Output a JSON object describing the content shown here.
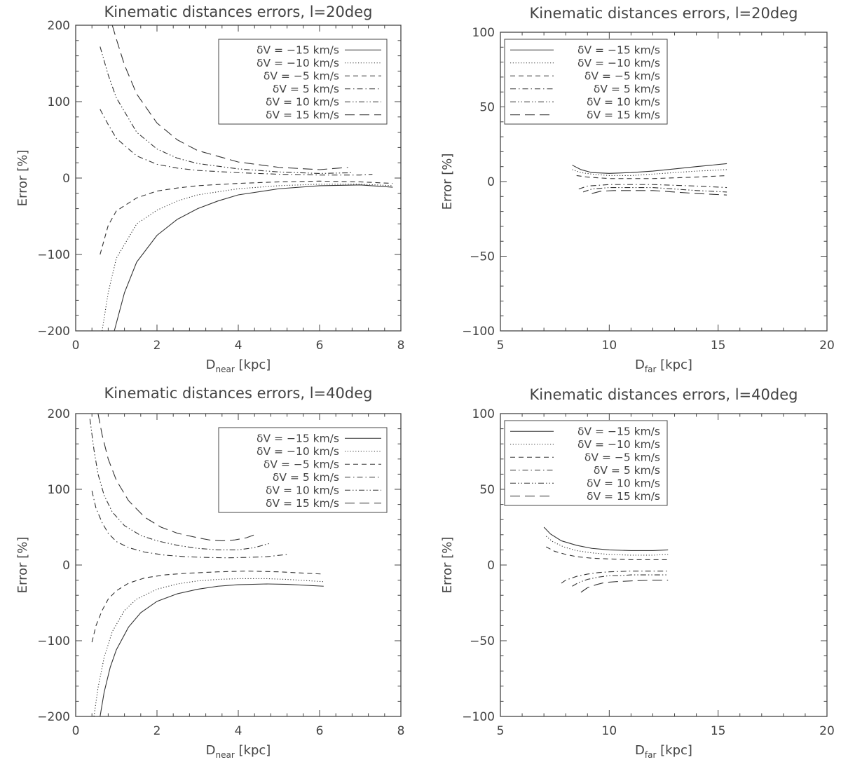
{
  "chart_data": [
    {
      "type": "line",
      "title": "Kinematic distances errors, l=20deg",
      "xlabel_main": "D",
      "xlabel_sub": "near",
      "xlabel_unit": " [kpc]",
      "ylabel": "Error [%]",
      "xlim": [
        0,
        8
      ],
      "ylim": [
        -200,
        200
      ],
      "xticks": [
        0,
        2,
        4,
        6,
        8
      ],
      "yticks": [
        -200,
        -100,
        0,
        100,
        200
      ],
      "legend_position": "top-right",
      "legend_align": "right",
      "series": [
        {
          "name": "δV = −15 km/s",
          "dash": "solid",
          "x": [
            0.95,
            1.2,
            1.5,
            2.0,
            2.5,
            3.0,
            3.5,
            4.0,
            5.0,
            6.0,
            7.0,
            7.8
          ],
          "y": [
            -200,
            -150,
            -110,
            -75,
            -54,
            -40,
            -30,
            -22,
            -14,
            -10,
            -9,
            -12
          ]
        },
        {
          "name": "δV = −10 km/s",
          "dash": "dotted",
          "x": [
            0.65,
            0.8,
            1.0,
            1.5,
            2.0,
            2.5,
            3.0,
            4.0,
            5.0,
            6.0,
            7.0,
            7.8
          ],
          "y": [
            -200,
            -150,
            -105,
            -60,
            -42,
            -30,
            -22,
            -14,
            -10,
            -8,
            -8,
            -10
          ]
        },
        {
          "name": "δV = −5 km/s",
          "dash": "dashed",
          "x": [
            0.6,
            0.8,
            1.0,
            1.5,
            2.0,
            2.5,
            3.0,
            4.0,
            5.0,
            6.0,
            7.0,
            7.8
          ],
          "y": [
            -100,
            -62,
            -43,
            -26,
            -17,
            -13,
            -10,
            -7,
            -5,
            -4,
            -5,
            -7
          ]
        },
        {
          "name": "δV = 5 km/s",
          "dash": "dashdot",
          "x": [
            0.6,
            0.8,
            1.0,
            1.5,
            2.0,
            2.5,
            3.0,
            4.0,
            5.0,
            6.0,
            7.0,
            7.3
          ],
          "y": [
            90,
            70,
            52,
            29,
            18,
            13,
            10,
            7,
            5,
            4,
            4,
            5
          ]
        },
        {
          "name": "δV = 10 km/s",
          "dash": "dashdotdot",
          "x": [
            0.6,
            0.8,
            1.0,
            1.5,
            2.0,
            2.5,
            3.0,
            4.0,
            5.0,
            6.0,
            6.8
          ],
          "y": [
            172,
            135,
            105,
            60,
            38,
            26,
            19,
            12,
            8,
            6,
            7
          ]
        },
        {
          "name": "δV = 15 km/s",
          "dash": "longdash",
          "x": [
            0.9,
            1.0,
            1.2,
            1.5,
            2.0,
            2.5,
            3.0,
            4.0,
            5.0,
            6.0,
            6.7
          ],
          "y": [
            200,
            182,
            148,
            110,
            72,
            50,
            36,
            21,
            14,
            11,
            14
          ]
        }
      ]
    },
    {
      "type": "line",
      "title": "Kinematic distances errors, l=20deg",
      "xlabel_main": "D",
      "xlabel_sub": "far",
      "xlabel_unit": " [kpc]",
      "ylabel": "Error [%]",
      "xlim": [
        5,
        20
      ],
      "ylim": [
        -100,
        100
      ],
      "xticks": [
        5,
        10,
        15,
        20
      ],
      "yticks": [
        -100,
        -50,
        0,
        50,
        100
      ],
      "legend_position": "top-left",
      "legend_align": "left",
      "series": [
        {
          "name": "δV = −15 km/s",
          "dash": "solid",
          "x": [
            8.3,
            8.7,
            9.2,
            10.0,
            11.0,
            12.0,
            13.0,
            14.0,
            15.4
          ],
          "y": [
            11,
            8,
            6,
            5.5,
            6,
            7,
            8.5,
            10,
            12
          ]
        },
        {
          "name": "δV = −10 km/s",
          "dash": "dotted",
          "x": [
            8.3,
            8.7,
            9.2,
            10.0,
            11.0,
            12.0,
            13.0,
            14.0,
            15.4
          ],
          "y": [
            8,
            6,
            5,
            4,
            4,
            5,
            6,
            7,
            8
          ]
        },
        {
          "name": "δV = −5 km/s",
          "dash": "dashed",
          "x": [
            8.5,
            9.0,
            10.0,
            11.0,
            12.0,
            13.0,
            14.0,
            15.4
          ],
          "y": [
            4,
            3,
            2,
            2,
            2,
            2.5,
            3,
            4
          ]
        },
        {
          "name": "δV = 5 km/s",
          "dash": "dashdot",
          "x": [
            8.6,
            9.0,
            10.0,
            11.0,
            12.0,
            13.0,
            14.0,
            15.4
          ],
          "y": [
            -5,
            -3,
            -2,
            -2,
            -2,
            -2.5,
            -3,
            -4
          ]
        },
        {
          "name": "δV = 10 km/s",
          "dash": "dashdotdot",
          "x": [
            8.8,
            9.2,
            10.0,
            11.0,
            12.0,
            13.0,
            14.0,
            15.4
          ],
          "y": [
            -7,
            -5,
            -4,
            -4,
            -4,
            -5,
            -6,
            -7
          ]
        },
        {
          "name": "δV = 15 km/s",
          "dash": "longdash",
          "x": [
            9.2,
            9.6,
            10.2,
            11.0,
            12.0,
            13.0,
            14.0,
            15.4
          ],
          "y": [
            -8,
            -6.5,
            -6,
            -6,
            -6,
            -7,
            -8,
            -9
          ]
        }
      ]
    },
    {
      "type": "line",
      "title": "Kinematic distances errors, l=40deg",
      "xlabel_main": "D",
      "xlabel_sub": "near",
      "xlabel_unit": " [kpc]",
      "ylabel": "Error [%]",
      "xlim": [
        0,
        8
      ],
      "ylim": [
        -200,
        200
      ],
      "xticks": [
        0,
        2,
        4,
        6,
        8
      ],
      "yticks": [
        -200,
        -100,
        0,
        100,
        200
      ],
      "legend_position": "top-right",
      "legend_align": "right",
      "series": [
        {
          "name": "δV = −15 km/s",
          "dash": "solid",
          "x": [
            0.6,
            0.7,
            0.85,
            1.0,
            1.3,
            1.6,
            2.0,
            2.5,
            3.0,
            3.5,
            4.0,
            4.7,
            5.2,
            6.1
          ],
          "y": [
            -200,
            -168,
            -135,
            -112,
            -82,
            -63,
            -48,
            -38,
            -32,
            -28,
            -26,
            -25,
            -25.5,
            -28
          ]
        },
        {
          "name": "δV = −10 km/s",
          "dash": "dotted",
          "x": [
            0.45,
            0.55,
            0.7,
            0.9,
            1.2,
            1.5,
            2.0,
            2.5,
            3.0,
            3.5,
            4.0,
            4.7,
            5.2,
            6.1
          ],
          "y": [
            -200,
            -162,
            -122,
            -88,
            -60,
            -45,
            -32,
            -25,
            -21,
            -19,
            -18,
            -18,
            -19,
            -22
          ]
        },
        {
          "name": "δV = −5 km/s",
          "dash": "dashed",
          "x": [
            0.4,
            0.5,
            0.65,
            0.8,
            1.0,
            1.3,
            1.7,
            2.2,
            2.7,
            3.5,
            4.2,
            5.0,
            6.1
          ],
          "y": [
            -102,
            -80,
            -60,
            -45,
            -34,
            -24,
            -17,
            -13,
            -11,
            -9,
            -8,
            -9,
            -12
          ]
        },
        {
          "name": "δV = 5 km/s",
          "dash": "dashdot",
          "x": [
            0.4,
            0.5,
            0.65,
            0.8,
            1.0,
            1.3,
            1.7,
            2.2,
            2.7,
            3.2,
            3.7,
            4.2,
            4.7,
            5.2
          ],
          "y": [
            98,
            75,
            56,
            42,
            31,
            23,
            17,
            13,
            11,
            10,
            9.5,
            10,
            11,
            14
          ]
        },
        {
          "name": "δV = 10 km/s",
          "dash": "dashdotdot",
          "x": [
            0.35,
            0.45,
            0.55,
            0.7,
            0.9,
            1.2,
            1.6,
            2.0,
            2.5,
            3.0,
            3.5,
            4.0,
            4.4,
            4.8
          ],
          "y": [
            193,
            152,
            120,
            92,
            70,
            52,
            39,
            32,
            26,
            22,
            20,
            20,
            23,
            29
          ]
        },
        {
          "name": "δV = 15 km/s",
          "dash": "longdash",
          "x": [
            0.55,
            0.65,
            0.8,
            1.0,
            1.3,
            1.7,
            2.1,
            2.5,
            3.0,
            3.3,
            3.6,
            3.9,
            4.2,
            4.4
          ],
          "y": [
            200,
            172,
            140,
            112,
            85,
            63,
            50,
            42,
            36,
            33,
            32,
            33,
            36,
            40
          ]
        }
      ]
    },
    {
      "type": "line",
      "title": "Kinematic distances errors, l=40deg",
      "xlabel_main": "D",
      "xlabel_sub": "far",
      "xlabel_unit": " [kpc]",
      "ylabel": "Error [%]",
      "xlim": [
        5,
        20
      ],
      "ylim": [
        -100,
        100
      ],
      "xticks": [
        5,
        10,
        15,
        20
      ],
      "yticks": [
        -100,
        -50,
        0,
        50,
        100
      ],
      "legend_position": "top-left",
      "legend_align": "left",
      "series": [
        {
          "name": "δV = −15 km/s",
          "dash": "solid",
          "x": [
            7.0,
            7.3,
            7.8,
            8.5,
            9.2,
            10.0,
            11.0,
            12.0,
            12.7
          ],
          "y": [
            25,
            20.5,
            16,
            13,
            11,
            10,
            9.5,
            9.5,
            10
          ]
        },
        {
          "name": "δV = −10 km/s",
          "dash": "dotted",
          "x": [
            7.1,
            7.4,
            7.9,
            8.5,
            9.2,
            10.0,
            11.0,
            12.0,
            12.7
          ],
          "y": [
            19,
            15.5,
            12,
            9.5,
            8,
            7,
            6.5,
            6.5,
            7
          ]
        },
        {
          "name": "δV = −5 km/s",
          "dash": "dashed",
          "x": [
            7.1,
            7.5,
            8.0,
            8.5,
            9.2,
            10.0,
            11.0,
            12.0,
            12.7
          ],
          "y": [
            12,
            9,
            7,
            5.5,
            4.5,
            4,
            3.5,
            3.5,
            3.5
          ]
        },
        {
          "name": "δV = 5 km/s",
          "dash": "dashdot",
          "x": [
            7.8,
            8.0,
            8.5,
            9.0,
            9.5,
            10.0,
            11.0,
            12.0,
            12.7
          ],
          "y": [
            -12,
            -10,
            -7.5,
            -6,
            -5,
            -4.5,
            -4,
            -4,
            -4
          ]
        },
        {
          "name": "δV = 10 km/s",
          "dash": "dashdotdot",
          "x": [
            8.3,
            8.6,
            9.0,
            9.5,
            10.0,
            10.5,
            11.0,
            12.0,
            12.7
          ],
          "y": [
            -14,
            -11.5,
            -9.5,
            -8,
            -7,
            -7,
            -6.5,
            -6.5,
            -6.5
          ]
        },
        {
          "name": "δV = 15 km/s",
          "dash": "longdash",
          "x": [
            8.7,
            9.0,
            9.4,
            9.8,
            10.3,
            11.0,
            12.0,
            12.7
          ],
          "y": [
            -18,
            -15,
            -13,
            -11.5,
            -11,
            -10.5,
            -10,
            -10
          ]
        }
      ]
    }
  ]
}
